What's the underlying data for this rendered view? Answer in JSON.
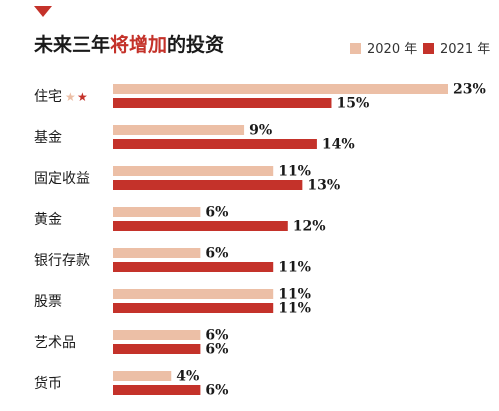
{
  "title": {
    "prefix": "未来三年",
    "highlight": "将增加",
    "suffix": "的投资"
  },
  "legend": [
    {
      "label": "2020 年",
      "color": "#ecbfa6"
    },
    {
      "label": "2021 年",
      "color": "#c4322a"
    }
  ],
  "stars": {
    "text": "★",
    "colors": [
      "#ecbfa6",
      "#c4322a"
    ]
  },
  "chart_data": {
    "type": "bar",
    "orientation": "horizontal",
    "categories": [
      "住宅",
      "基金",
      "固定收益",
      "黄金",
      "银行存款",
      "股票",
      "艺术品",
      "货币"
    ],
    "series": [
      {
        "name": "2020 年",
        "color": "#ecbfa6",
        "values": [
          23,
          9,
          11,
          6,
          6,
          11,
          6,
          4
        ]
      },
      {
        "name": "2021 年",
        "color": "#c4322a",
        "values": [
          15,
          14,
          13,
          12,
          11,
          11,
          6,
          6
        ]
      }
    ],
    "value_suffix": "%",
    "xlim": [
      0,
      23
    ],
    "grid": false,
    "legend_position": "top-right"
  }
}
